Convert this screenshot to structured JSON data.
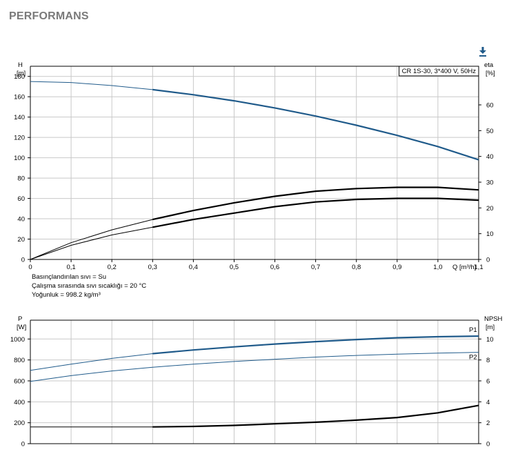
{
  "page": {
    "title": "PERFORMANS"
  },
  "download": {
    "icon": "download-icon"
  },
  "notes": {
    "liquid": "Basınçlandırılan sıvı = Su",
    "temp": "Çalışma sırasında sıvı sıcaklığı = 20 °C",
    "density": "Yoğunluk = 998.2 kg/m³"
  },
  "colors": {
    "blue": "#1f5a8a",
    "black": "#000000",
    "grid": "#c8c8c8"
  },
  "chart_data": [
    {
      "type": "line",
      "legend_box": "CR 1S-30, 3*400 V, 50Hz",
      "x_label": "Q [m³/h]",
      "y_label": [
        "H",
        "[m]"
      ],
      "y2_label": [
        "eta",
        "[%]"
      ],
      "xlim": [
        0,
        1.1
      ],
      "ylim": [
        0,
        190
      ],
      "y2lim": [
        0,
        75
      ],
      "x_ticks": [
        "0",
        "0,1",
        "0,2",
        "0,3",
        "0,4",
        "0,5",
        "0,6",
        "0,7",
        "0,8",
        "0,9",
        "1,0",
        "1,1"
      ],
      "y_ticks": [
        "0",
        "20",
        "40",
        "60",
        "80",
        "100",
        "120",
        "140",
        "160",
        "180"
      ],
      "y2_ticks": [
        "0",
        "10",
        "20",
        "30",
        "40",
        "50",
        "60"
      ],
      "series": [
        {
          "axis": "y",
          "color": "#1f5a8a",
          "thick_from": 0.3,
          "points": [
            [
              0,
              175
            ],
            [
              0.1,
              174
            ],
            [
              0.2,
              171
            ],
            [
              0.3,
              167
            ],
            [
              0.4,
              162
            ],
            [
              0.5,
              156
            ],
            [
              0.6,
              149
            ],
            [
              0.7,
              141
            ],
            [
              0.8,
              132
            ],
            [
              0.9,
              122
            ],
            [
              1.0,
              111
            ],
            [
              1.1,
              98
            ]
          ]
        },
        {
          "axis": "y2",
          "color": "#000000",
          "thick_from": 0.3,
          "points": [
            [
              0,
              0
            ],
            [
              0.1,
              6.5
            ],
            [
              0.2,
              11.5
            ],
            [
              0.3,
              15.5
            ],
            [
              0.4,
              19
            ],
            [
              0.5,
              22
            ],
            [
              0.6,
              24.5
            ],
            [
              0.7,
              26.5
            ],
            [
              0.8,
              27.5
            ],
            [
              0.9,
              28
            ],
            [
              1.0,
              28
            ],
            [
              1.1,
              27
            ]
          ]
        },
        {
          "axis": "y2",
          "color": "#000000",
          "thick_from": 0.3,
          "points": [
            [
              0,
              0
            ],
            [
              0.1,
              5.5
            ],
            [
              0.2,
              9.5
            ],
            [
              0.3,
              12.5
            ],
            [
              0.4,
              15.5
            ],
            [
              0.5,
              18
            ],
            [
              0.6,
              20.5
            ],
            [
              0.7,
              22.3
            ],
            [
              0.8,
              23.3
            ],
            [
              0.9,
              23.7
            ],
            [
              1.0,
              23.7
            ],
            [
              1.1,
              23
            ]
          ]
        }
      ]
    },
    {
      "type": "line",
      "x_label": "",
      "y_label": [
        "P",
        "[W]"
      ],
      "y2_label": [
        "NPSH",
        "[m]"
      ],
      "xlim": [
        0,
        1.1
      ],
      "ylim": [
        0,
        1180
      ],
      "y2lim": [
        0,
        11.8
      ],
      "y_ticks": [
        "0",
        "200",
        "400",
        "600",
        "800",
        "1000"
      ],
      "y2_ticks": [
        "0",
        "2",
        "4",
        "6",
        "8",
        "10"
      ],
      "series": [
        {
          "name": "P1",
          "axis": "y",
          "color": "#1f5a8a",
          "thick_from": 0.3,
          "points": [
            [
              0,
              700
            ],
            [
              0.1,
              760
            ],
            [
              0.2,
              815
            ],
            [
              0.3,
              860
            ],
            [
              0.4,
              895
            ],
            [
              0.5,
              925
            ],
            [
              0.6,
              952
            ],
            [
              0.7,
              975
            ],
            [
              0.8,
              995
            ],
            [
              0.9,
              1012
            ],
            [
              1.0,
              1022
            ],
            [
              1.1,
              1028
            ]
          ]
        },
        {
          "name": "P2",
          "axis": "y",
          "color": "#1f5a8a",
          "thick_from": 1.2,
          "points": [
            [
              0,
              595
            ],
            [
              0.1,
              650
            ],
            [
              0.2,
              695
            ],
            [
              0.3,
              730
            ],
            [
              0.4,
              760
            ],
            [
              0.5,
              785
            ],
            [
              0.6,
              807
            ],
            [
              0.7,
              827
            ],
            [
              0.8,
              843
            ],
            [
              0.9,
              855
            ],
            [
              1.0,
              865
            ],
            [
              1.1,
              873
            ]
          ]
        },
        {
          "axis": "y2",
          "color": "#000000",
          "thick_from": 0.3,
          "points": [
            [
              0,
              1.6
            ],
            [
              0.1,
              1.6
            ],
            [
              0.2,
              1.6
            ],
            [
              0.3,
              1.6
            ],
            [
              0.4,
              1.65
            ],
            [
              0.5,
              1.75
            ],
            [
              0.6,
              1.9
            ],
            [
              0.7,
              2.05
            ],
            [
              0.8,
              2.25
            ],
            [
              0.9,
              2.5
            ],
            [
              1.0,
              2.95
            ],
            [
              1.1,
              3.65
            ]
          ]
        }
      ]
    }
  ]
}
